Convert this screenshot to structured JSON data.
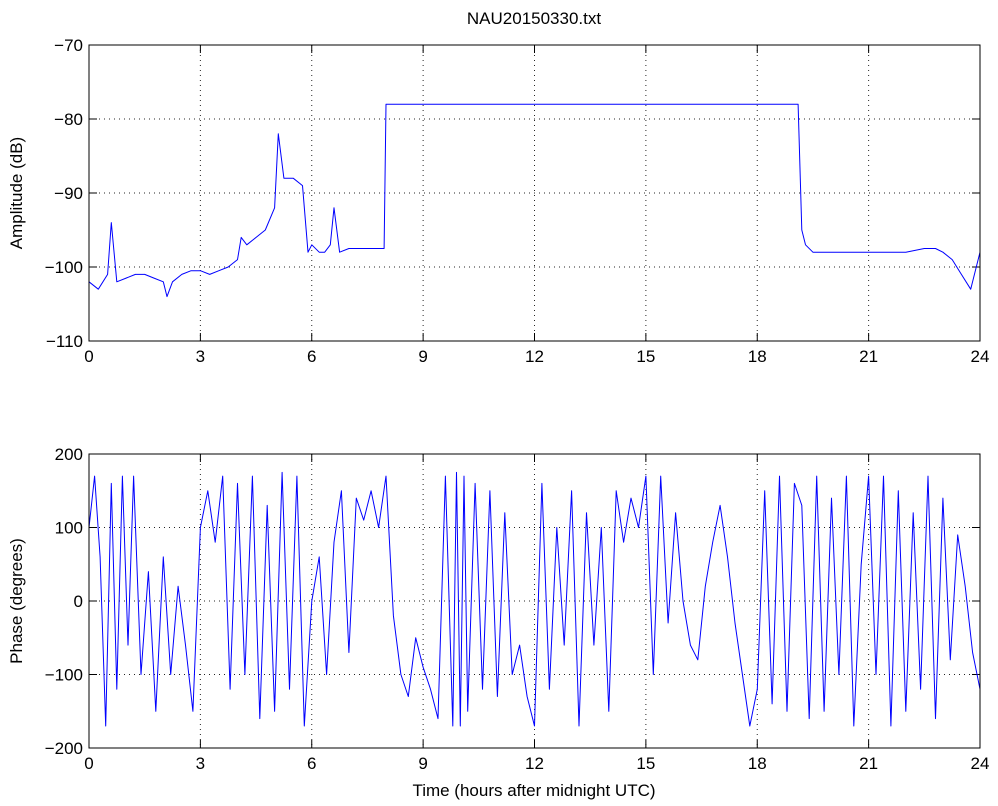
{
  "chart_data": [
    {
      "type": "line",
      "title": "NAU20150330.txt",
      "xlabel": "",
      "ylabel": "Amplitude (dB)",
      "xlim": [
        0,
        24
      ],
      "ylim": [
        -110,
        -70
      ],
      "xticks": [
        "0",
        "3",
        "6",
        "9",
        "12",
        "15",
        "18",
        "21",
        "24"
      ],
      "yticks": [
        "−70",
        "−80",
        "−90",
        "−100",
        "−110"
      ],
      "grid": true,
      "color": "#0000ff",
      "series": [
        {
          "x": [
            0,
            0.25,
            0.5,
            0.6,
            0.75,
            1.0,
            1.25,
            1.5,
            1.75,
            2.0,
            2.1,
            2.25,
            2.5,
            2.75,
            3.0,
            3.25,
            3.5,
            3.75,
            4.0,
            4.1,
            4.25,
            4.5,
            4.75,
            5.0,
            5.1,
            5.25,
            5.5,
            5.75,
            5.9,
            6.0,
            6.2,
            6.35,
            6.5,
            6.6,
            6.75,
            7.0,
            7.25,
            7.5,
            7.75,
            7.95,
            8.0,
            8.1,
            8.5,
            9.0,
            9.5,
            10.0,
            10.5,
            11.0,
            11.5,
            12.0,
            12.5,
            13.0,
            13.5,
            14.0,
            14.5,
            15.0,
            15.5,
            16.0,
            16.5,
            17.0,
            17.5,
            18.0,
            18.5,
            19.0,
            19.1,
            19.2,
            19.3,
            19.5,
            20.0,
            20.5,
            21.0,
            21.5,
            22.0,
            22.5,
            22.8,
            23.0,
            23.25,
            23.5,
            23.75,
            24.0
          ],
          "y": [
            -102,
            -103,
            -101,
            -94,
            -102,
            -101.5,
            -101,
            -101,
            -101.5,
            -102,
            -104,
            -102,
            -101,
            -100.5,
            -100.5,
            -101,
            -100.5,
            -100,
            -99,
            -96,
            -97,
            -96,
            -95,
            -92,
            -82,
            -88,
            -88,
            -89,
            -98,
            -97,
            -98,
            -98,
            -97,
            -92,
            -98,
            -97.5,
            -97.5,
            -97.5,
            -97.5,
            -97.5,
            -78,
            -78,
            -78,
            -78,
            -78,
            -78,
            -78,
            -78,
            -78,
            -78,
            -78,
            -78,
            -78,
            -78,
            -78,
            -78,
            -78,
            -78,
            -78,
            -78,
            -78,
            -78,
            -78,
            -78,
            -78,
            -95,
            -97,
            -98,
            -98,
            -98,
            -98,
            -98,
            -98,
            -97.5,
            -97.5,
            -98,
            -99,
            -101,
            -103,
            -98
          ]
        }
      ]
    },
    {
      "type": "line",
      "title": "",
      "xlabel": "Time (hours after midnight UTC)",
      "ylabel": "Phase (degrees)",
      "xlim": [
        0,
        24
      ],
      "ylim": [
        -200,
        200
      ],
      "xticks": [
        "0",
        "3",
        "6",
        "9",
        "12",
        "15",
        "18",
        "21",
        "24"
      ],
      "yticks": [
        "200",
        "100",
        "0",
        "−100",
        "−200"
      ],
      "grid": true,
      "color": "#0000ff",
      "series": [
        {
          "x": [
            0,
            0.15,
            0.3,
            0.45,
            0.6,
            0.75,
            0.9,
            1.05,
            1.2,
            1.4,
            1.6,
            1.8,
            2.0,
            2.2,
            2.4,
            2.6,
            2.8,
            3.0,
            3.2,
            3.4,
            3.6,
            3.8,
            4.0,
            4.2,
            4.4,
            4.6,
            4.8,
            5.0,
            5.2,
            5.4,
            5.6,
            5.8,
            6.0,
            6.2,
            6.4,
            6.6,
            6.8,
            7.0,
            7.2,
            7.4,
            7.6,
            7.8,
            8.0,
            8.2,
            8.4,
            8.6,
            8.8,
            9.0,
            9.2,
            9.4,
            9.6,
            9.8,
            9.9,
            10.0,
            10.1,
            10.2,
            10.4,
            10.6,
            10.8,
            11.0,
            11.2,
            11.4,
            11.6,
            11.8,
            12.0,
            12.2,
            12.4,
            12.6,
            12.8,
            13.0,
            13.2,
            13.4,
            13.6,
            13.8,
            14.0,
            14.2,
            14.4,
            14.6,
            14.8,
            15.0,
            15.2,
            15.4,
            15.6,
            15.8,
            16.0,
            16.2,
            16.4,
            16.6,
            16.8,
            17.0,
            17.2,
            17.4,
            17.6,
            17.8,
            18.0,
            18.2,
            18.4,
            18.6,
            18.8,
            19.0,
            19.2,
            19.4,
            19.6,
            19.8,
            20.0,
            20.2,
            20.4,
            20.6,
            20.8,
            21.0,
            21.2,
            21.4,
            21.6,
            21.8,
            22.0,
            22.2,
            22.4,
            22.6,
            22.8,
            23.0,
            23.2,
            23.4,
            23.6,
            23.8,
            24.0
          ],
          "y": [
            100,
            170,
            60,
            -170,
            160,
            -120,
            170,
            -60,
            170,
            -100,
            40,
            -150,
            60,
            -100,
            20,
            -60,
            -150,
            100,
            150,
            80,
            170,
            -120,
            160,
            -100,
            170,
            -160,
            130,
            -150,
            175,
            -120,
            170,
            -170,
            0,
            60,
            -100,
            80,
            150,
            -70,
            140,
            110,
            150,
            100,
            170,
            -20,
            -100,
            -130,
            -50,
            -90,
            -120,
            -160,
            170,
            -170,
            175,
            -170,
            170,
            -150,
            160,
            -120,
            150,
            -130,
            120,
            -100,
            -60,
            -130,
            -170,
            160,
            -120,
            100,
            -60,
            150,
            -170,
            120,
            -60,
            100,
            -150,
            150,
            80,
            140,
            100,
            170,
            -100,
            170,
            -30,
            120,
            0,
            -60,
            -80,
            20,
            80,
            130,
            60,
            -30,
            -100,
            -170,
            -120,
            150,
            -140,
            170,
            -150,
            160,
            130,
            -160,
            170,
            -150,
            140,
            -100,
            170,
            -170,
            50,
            170,
            -100,
            170,
            -170,
            150,
            -150,
            120,
            -120,
            170,
            -160,
            140,
            -80,
            90,
            20,
            -70,
            -120
          ]
        }
      ]
    }
  ]
}
